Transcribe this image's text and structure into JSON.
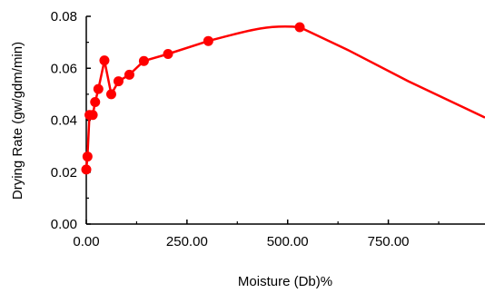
{
  "chart_data": {
    "type": "line",
    "title": "",
    "xlabel": "Moisture (Db)%",
    "ylabel": "Drying Rate (gw/gdm/min)",
    "xlim": [
      0,
      990
    ],
    "ylim": [
      0,
      0.08
    ],
    "x_ticks": [
      "0.00",
      "250.00",
      "500.00",
      "750.00"
    ],
    "x_tick_values": [
      0,
      250,
      500,
      750
    ],
    "y_ticks": [
      "0.00",
      "0.02",
      "0.04",
      "0.06",
      "0.08"
    ],
    "y_tick_values": [
      0,
      0.02,
      0.04,
      0.06,
      0.08
    ],
    "grid": false,
    "legend": "none",
    "series": [
      {
        "color": "#ff0000",
        "points": [
          {
            "x": 0,
            "y": 0.021
          },
          {
            "x": 3,
            "y": 0.026
          },
          {
            "x": 8,
            "y": 0.042
          },
          {
            "x": 16,
            "y": 0.042
          },
          {
            "x": 22,
            "y": 0.047
          },
          {
            "x": 30,
            "y": 0.052
          },
          {
            "x": 45,
            "y": 0.063
          },
          {
            "x": 62,
            "y": 0.05
          },
          {
            "x": 80,
            "y": 0.055
          },
          {
            "x": 107,
            "y": 0.0575
          },
          {
            "x": 143,
            "y": 0.0628
          },
          {
            "x": 203,
            "y": 0.0655
          },
          {
            "x": 303,
            "y": 0.0705
          },
          {
            "x": 530,
            "y": 0.0758
          }
        ],
        "curve_tail": [
          {
            "x": 650,
            "y": 0.067
          },
          {
            "x": 800,
            "y": 0.055
          },
          {
            "x": 990,
            "y": 0.041
          }
        ]
      }
    ]
  }
}
